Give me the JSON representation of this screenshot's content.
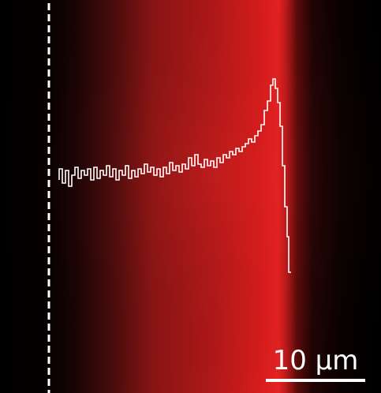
{
  "scale_bar": {
    "label": "10 µm"
  }
}
